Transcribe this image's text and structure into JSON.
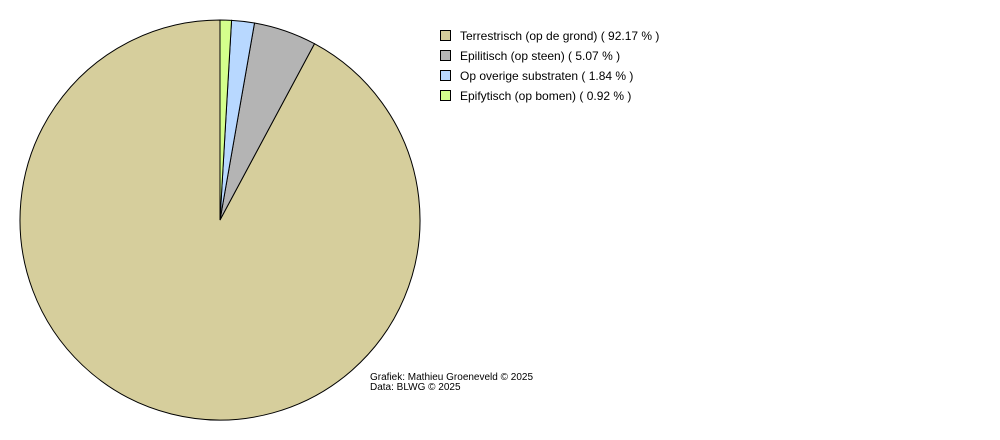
{
  "chart_data": {
    "type": "pie",
    "labels": [
      "Terrestrisch (op de grond)",
      "Epilitisch (op steen)",
      "Op overige substraten",
      "Epifytisch (op bomen)"
    ],
    "values": [
      92.17,
      5.07,
      1.84,
      0.92
    ],
    "value_unit": "%",
    "colors": [
      "#d6ce9c",
      "#b4b4b4",
      "#b8d8ff",
      "#d4ff8c"
    ],
    "start_angle": "top (12 o'clock)",
    "direction": "counter-clockwise",
    "legend_position": "top-right",
    "legend": [
      {
        "label": "Terrestrisch (op de grond) ( 92.17 % )"
      },
      {
        "label": "Epilitisch (op steen) ( 5.07 % )"
      },
      {
        "label": "Op overige substraten ( 1.84 % )"
      },
      {
        "label": "Epifytisch (op bomen) ( 0.92 % )"
      }
    ],
    "credits": {
      "author": "Grafiek: Mathieu Groeneveld © 2025",
      "source": "Data: BLWG © 2025"
    }
  }
}
